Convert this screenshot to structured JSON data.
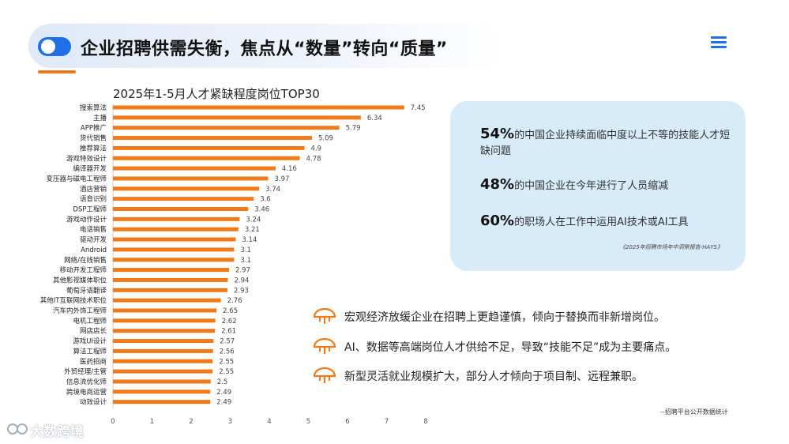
{
  "header": {
    "title": "企业招聘供需失衡，焦点从“数量”转向“质量”",
    "accent_color": "#f07a1a",
    "brand_color": "#1f6fe5",
    "menu_icon": "hamburger-icon",
    "toggle_icon": "toggle-icon"
  },
  "chart_data": {
    "type": "bar",
    "orientation": "horizontal",
    "title": "2025年1-5月人才紧缺程度岗位TOP30",
    "categories": [
      "搜索算法",
      "主播",
      "APP推广",
      "货代销售",
      "推荐算法",
      "游戏特效设计",
      "编译器开发",
      "变压器与磁电工程师",
      "酒店营销",
      "语音识别",
      "DSP工程师",
      "游戏动作设计",
      "电话销售",
      "驱动开发",
      "Android",
      "网络/在线销售",
      "移动开发工程师",
      "其他影视媒体职位",
      "葡萄牙语翻译",
      "其他IT互联网技术职位",
      "汽车内外饰工程师",
      "电机工程师",
      "网店店长",
      "游戏UI设计",
      "算法工程师",
      "医药招商",
      "外贸经理/主管",
      "信息流优化师",
      "跨境电商运营",
      "动效设计"
    ],
    "values": [
      7.45,
      6.34,
      5.79,
      5.09,
      4.9,
      4.78,
      4.16,
      3.97,
      3.74,
      3.6,
      3.46,
      3.24,
      3.21,
      3.14,
      3.1,
      3.1,
      2.97,
      2.94,
      2.93,
      2.76,
      2.65,
      2.62,
      2.61,
      2.57,
      2.56,
      2.55,
      2.55,
      2.5,
      2.49,
      2.49
    ],
    "value_labels": [
      "7.45",
      "6.34",
      "5.79",
      "5.09",
      "4.9",
      "4.78",
      "4.16",
      "3.97",
      "3.74",
      "3.6",
      "3.46",
      "3.24",
      "3.21",
      "3.14",
      "3.1",
      "3.1",
      "2.97",
      "2.94",
      "2.93",
      "2.76",
      "2.65",
      "2.62",
      "2.61",
      "2.57",
      "2.56",
      "2.55",
      "2.55",
      "2.5",
      "2.49",
      "2.49"
    ],
    "xlim": [
      0,
      8
    ],
    "xticks": [
      "0",
      "1",
      "2",
      "3",
      "4",
      "5",
      "6",
      "7",
      "8"
    ],
    "bar_color": "#f07a1a",
    "grid": false
  },
  "stats": [
    {
      "num": "54%",
      "text": "的中国企业持续面临中度以上不等的技能人才短缺问题"
    },
    {
      "num": "48%",
      "text": "的中国企业在今年进行了人员缩减"
    },
    {
      "num": "60%",
      "text": "的职场人在工作中运用AI技术或AI工具"
    }
  ],
  "stats_source": "《2025年招聘市场年中洞察报告-HAYS》",
  "bullets": [
    {
      "text": "宏观经济放缓企业在招聘上更趋谨慎，倾向于替换而非新增岗位。",
      "icon": "umbrella-icon"
    },
    {
      "text": "AI、数据等高端岗位人才供给不足，导致“技能不足”成为主要痛点。",
      "icon": "umbrella-icon"
    },
    {
      "text": "新型灵活就业规模扩大，部分人才倾向于项目制、远程兼职。",
      "icon": "umbrella-icon"
    }
  ],
  "bottom_source": "--招聘平台公开数据统计",
  "watermark": "大数跨境"
}
